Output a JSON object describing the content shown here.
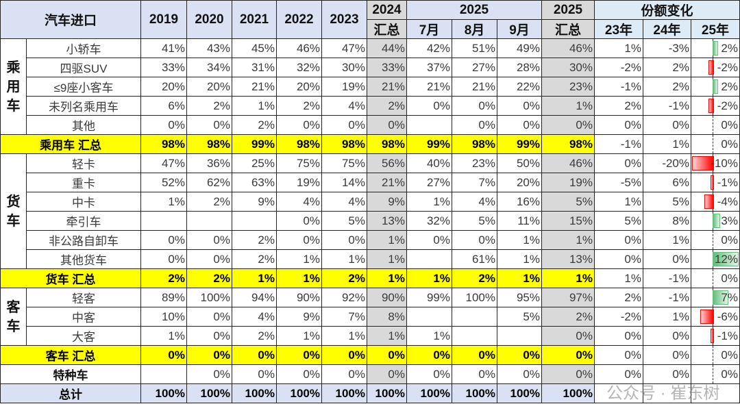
{
  "header": {
    "title": "汽车进口",
    "years": [
      "2019",
      "2020",
      "2021",
      "2022",
      "2023"
    ],
    "y2024": "2024",
    "y2024_sub": "汇总",
    "y2025": "2025",
    "months": [
      "7月",
      "8月",
      "9月"
    ],
    "y2025_total": "2025",
    "y2025_total_sub": "汇总",
    "change": "份额变化",
    "change_cols": [
      "23年",
      "24年",
      "25年"
    ]
  },
  "groups": [
    {
      "name": "乘用车",
      "rows": [
        {
          "label": "小轿车",
          "values": [
            "41%",
            "43%",
            "45%",
            "46%",
            "47%",
            "44%",
            "42%",
            "51%",
            "49%",
            "46%"
          ],
          "change": [
            "1%",
            "-3%",
            "2%"
          ],
          "bar": 2
        },
        {
          "label": "四驱SUV",
          "values": [
            "33%",
            "34%",
            "31%",
            "32%",
            "30%",
            "33%",
            "37%",
            "27%",
            "28%",
            "30%"
          ],
          "change": [
            "-2%",
            "2%",
            "-2%"
          ],
          "bar": -2
        },
        {
          "label": "≤9座小客车",
          "values": [
            "20%",
            "20%",
            "21%",
            "20%",
            "19%",
            "21%",
            "21%",
            "21%",
            "22%",
            "23%"
          ],
          "change": [
            "-1%",
            "2%",
            "2%"
          ],
          "bar": 2
        },
        {
          "label": "未列名乘用车",
          "values": [
            "6%",
            "2%",
            "1%",
            "2%",
            "4%",
            "2%",
            "0%",
            "0%",
            "0%",
            "1%"
          ],
          "change": [
            "2%",
            "-1%",
            "-2%"
          ],
          "bar": -2
        },
        {
          "label": "其他",
          "values": [
            "0%",
            "0%",
            "2%",
            "0%",
            "0%",
            "0%",
            "",
            "0%",
            "0%",
            "0%"
          ],
          "change": [
            "0%",
            "0%",
            "0%"
          ],
          "bar": 0
        }
      ],
      "summary": {
        "label": "乘用车 汇总",
        "values": [
          "98%",
          "98%",
          "99%",
          "98%",
          "98%",
          "98%",
          "99%",
          "98%",
          "99%",
          "98%"
        ],
        "change": [
          "-1%",
          "1%",
          "0%"
        ],
        "bar": 0
      }
    },
    {
      "name": "货车",
      "rows": [
        {
          "label": "轻卡",
          "values": [
            "47%",
            "36%",
            "25%",
            "75%",
            "75%",
            "56%",
            "40%",
            "23%",
            "50%",
            "46%"
          ],
          "change": [
            "0%",
            "-20%",
            "-10%"
          ],
          "bar": -10
        },
        {
          "label": "重卡",
          "values": [
            "52%",
            "62%",
            "63%",
            "19%",
            "14%",
            "21%",
            "27%",
            "7%",
            "20%",
            "19%"
          ],
          "change": [
            "-5%",
            "6%",
            "-1%"
          ],
          "bar": -1
        },
        {
          "label": "中卡",
          "values": [
            "1%",
            "2%",
            "9%",
            "4%",
            "4%",
            "9%",
            "1%",
            "4%",
            "16%",
            "5%"
          ],
          "change": [
            "1%",
            "5%",
            "-4%"
          ],
          "bar": -4
        },
        {
          "label": "牵引车",
          "values": [
            "",
            "",
            "",
            "0%",
            "5%",
            "13%",
            "32%",
            "5%",
            "11%",
            "15%"
          ],
          "change": [
            "5%",
            "8%",
            "3%"
          ],
          "bar": 3
        },
        {
          "label": "非公路自卸车",
          "values": [
            "0%",
            "0%",
            "2%",
            "0%",
            "0%",
            "1%",
            "0%",
            "0%",
            "1%",
            "1%"
          ],
          "change": [
            "0%",
            "1%",
            "0%"
          ],
          "bar": 0
        },
        {
          "label": "其他货车",
          "values": [
            "0%",
            "0%",
            "2%",
            "1%",
            "1%",
            "1%",
            "",
            "61%",
            "1%",
            "13%"
          ],
          "change": [
            "0%",
            "0%",
            "12%"
          ],
          "bar": 12
        }
      ],
      "summary": {
        "label": "货车 汇总",
        "values": [
          "2%",
          "2%",
          "1%",
          "1%",
          "2%",
          "1%",
          "1%",
          "2%",
          "1%",
          "1%"
        ],
        "change": [
          "1%",
          "-1%",
          "0%"
        ],
        "bar": 0
      }
    },
    {
      "name": "客车",
      "rows": [
        {
          "label": "轻客",
          "values": [
            "89%",
            "100%",
            "94%",
            "90%",
            "92%",
            "90%",
            "99%",
            "100%",
            "95%",
            "97%"
          ],
          "change": [
            "2%",
            "-1%",
            "7%"
          ],
          "bar": 7
        },
        {
          "label": "中客",
          "values": [
            "10%",
            "0%",
            "4%",
            "9%",
            "7%",
            "8%",
            "",
            "",
            "5%",
            "2%"
          ],
          "change": [
            "-2%",
            "1%",
            "-6%"
          ],
          "bar": -6
        },
        {
          "label": "大客",
          "values": [
            "1%",
            "0%",
            "2%",
            "1%",
            "1%",
            "1%",
            "1%",
            "",
            "",
            "0%"
          ],
          "change": [
            "0%",
            "0%",
            "-1%"
          ],
          "bar": -1
        }
      ],
      "summary": {
        "label": "客车 汇总",
        "values": [
          "0%",
          "0%",
          "0%",
          "0%",
          "0%",
          "0%",
          "0%",
          "0%",
          "0%",
          "0%"
        ],
        "change": [
          "0%",
          "0%",
          "0%"
        ],
        "bar": 0
      }
    }
  ],
  "special": {
    "label": "特种车",
    "values": [
      "",
      "0%",
      "0%",
      "0%",
      "0%",
      "0%",
      "0%",
      "0%",
      "0%",
      "0%"
    ],
    "change": [
      "0%",
      "0%",
      "0%"
    ],
    "bar": 0
  },
  "total": {
    "label": "总计",
    "values": [
      "100%",
      "100%",
      "100%",
      "100%",
      "100%",
      "100%",
      "100%",
      "100%",
      "100%",
      "100%"
    ],
    "change": [
      "",
      "",
      ""
    ]
  },
  "colors": {
    "header": "#d9e1f2",
    "summary": "#ffff00",
    "gray": "#d9d9d9",
    "positive_bar": "#63be7b",
    "negative_bar": "#ff0000"
  },
  "watermark": "公众号 · 崔东树"
}
